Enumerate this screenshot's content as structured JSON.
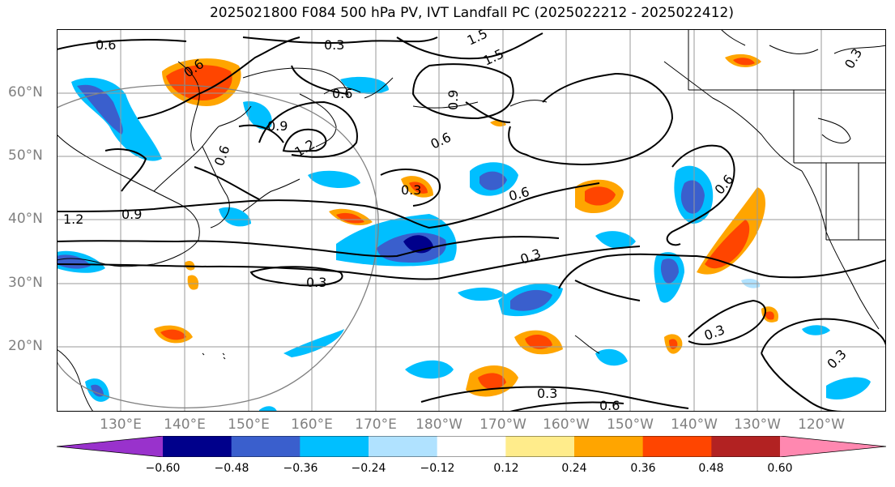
{
  "title": "2025021800 F084 500 hPa PV, IVT Landfall PC (2025022212 - 2025022412)",
  "lat_labels": [
    "60°N",
    "50°N",
    "40°N",
    "30°N",
    "20°N"
  ],
  "lon_labels": [
    "130°E",
    "140°E",
    "150°E",
    "160°E",
    "170°E",
    "180°W",
    "170°W",
    "160°W",
    "150°W",
    "140°W",
    "130°W",
    "120°W"
  ],
  "contour_labels": [
    "0.6",
    "0.3",
    "1.5",
    "1.5",
    "0.6",
    "0.6",
    "0.9",
    "1.2",
    "0.6",
    "0.9",
    "0.3",
    "0.6",
    "0.9",
    "0.6",
    "0.3",
    "0.3",
    "0.3",
    "0.3",
    "0.3",
    "0.3",
    "0.6",
    "1.2",
    "0.6"
  ],
  "colorbar": {
    "ticks": [
      "−0.60",
      "−0.48",
      "−0.36",
      "−0.24",
      "−0.12",
      "0.12",
      "0.24",
      "0.36",
      "0.48",
      "0.60"
    ],
    "colors": [
      "#9932cc",
      "#00008b",
      "#3a5fcd",
      "#00bfff",
      "#b0e2ff",
      "#ffffff",
      "#ffec8b",
      "#ffa500",
      "#ff4500",
      "#b22222",
      "#ff88b0"
    ]
  }
}
